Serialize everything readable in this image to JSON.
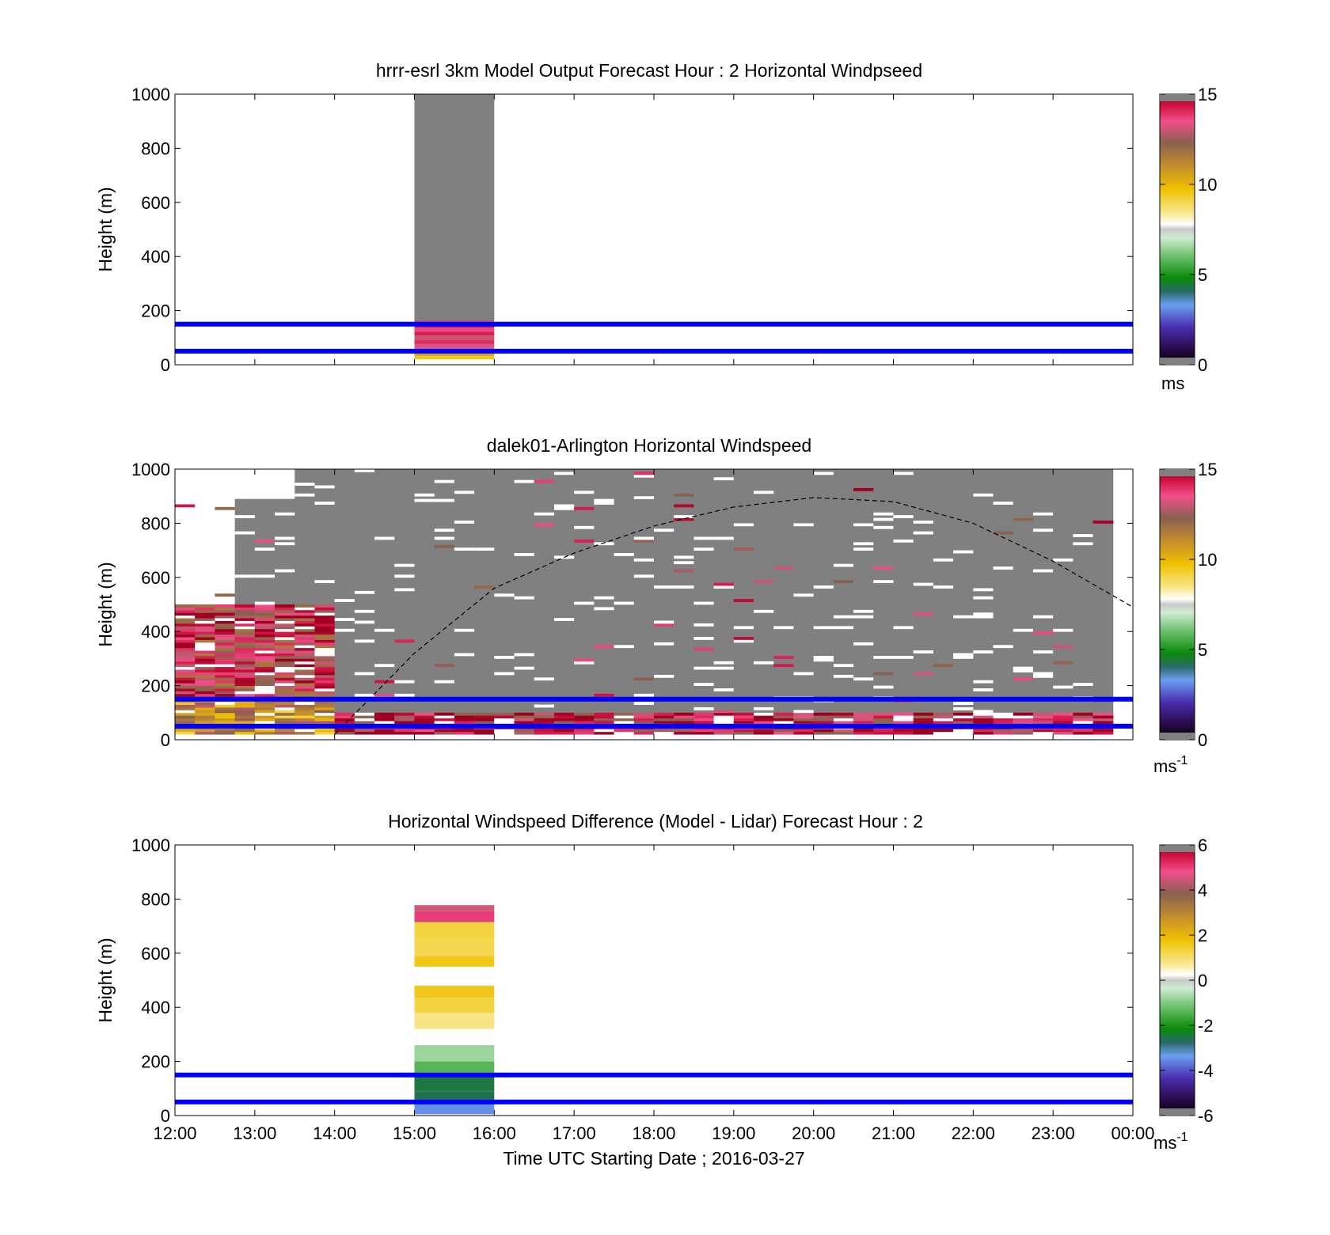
{
  "figure": {
    "xticks": [
      "12:00",
      "13:00",
      "14:00",
      "15:00",
      "16:00",
      "17:00",
      "18:00",
      "19:00",
      "20:00",
      "21:00",
      "22:00",
      "23:00",
      "00:00"
    ],
    "xlabel": "Time UTC  Starting Date ; 2016-03-27",
    "ylabel": "Height (m)",
    "colors": {
      "reference_lines": "#0000ff",
      "missing_data": "#808080",
      "background": "#ffffff"
    }
  },
  "panels": [
    {
      "title": "hrrr-esrl 3km Model Output   Forecast Hour : 2 Horizontal Windpseed",
      "yticks": [
        "0",
        "200",
        "400",
        "600",
        "800",
        "1000"
      ],
      "colorbar": {
        "ticks": [
          "0",
          "5",
          "10",
          "15"
        ],
        "unit_base": "ms",
        "unit_sup": ""
      }
    },
    {
      "title": "dalek01-Arlington  Horizontal Windspeed",
      "yticks": [
        "0",
        "200",
        "400",
        "600",
        "800",
        "1000"
      ],
      "colorbar": {
        "ticks": [
          "0",
          "5",
          "10",
          "15"
        ],
        "unit_base": "ms",
        "unit_sup": "-1"
      }
    },
    {
      "title": "Horizontal Windspeed Difference (Model - Lidar) Forecast Hour : 2",
      "yticks": [
        "0",
        "200",
        "400",
        "600",
        "800",
        "1000"
      ],
      "colorbar": {
        "ticks": [
          "-6",
          "-4",
          "-2",
          "0",
          "2",
          "4",
          "6"
        ],
        "unit_base": "ms",
        "unit_sup": "-1"
      }
    }
  ],
  "chart_data": [
    {
      "type": "heatmap",
      "title": "hrrr-esrl 3km Model Output   Forecast Hour : 2 Horizontal Windpseed",
      "ylabel": "Height (m)",
      "xlim": [
        "12:00",
        "00:00"
      ],
      "ylim": [
        0,
        1000
      ],
      "clim": [
        0,
        15
      ],
      "colorbar_unit": "ms",
      "colormap": [
        "#2a0a4a",
        "#4a2fb0",
        "#6aa0f0",
        "#0a8a0a",
        "#8fd08f",
        "#f0f0f0",
        "#f0c000",
        "#c08a30",
        "#9a6a50",
        "#e8406a",
        "#d01040"
      ],
      "reference_lines_height_m": [
        50,
        150
      ],
      "data_columns": [
        {
          "time_start": "15:00",
          "time_end": "16:00",
          "valid_range_m": [
            20,
            165
          ],
          "values_by_height": [
            {
              "height_m": 25,
              "value": 9.5
            },
            {
              "height_m": 40,
              "value": 10.5
            },
            {
              "height_m": 55,
              "value": 13.5
            },
            {
              "height_m": 70,
              "value": 13.2
            },
            {
              "height_m": 85,
              "value": 14.0
            },
            {
              "height_m": 100,
              "value": 13.0
            },
            {
              "height_m": 115,
              "value": 14.2
            },
            {
              "height_m": 130,
              "value": 13.6
            },
            {
              "height_m": 145,
              "value": 14.4
            },
            {
              "height_m": 160,
              "value": 12.8
            }
          ],
          "missing_above_m": 165
        }
      ]
    },
    {
      "type": "heatmap",
      "title": "dalek01-Arlington  Horizontal Windspeed",
      "ylabel": "Height (m)",
      "xlim": [
        "12:00",
        "00:00"
      ],
      "ylim": [
        0,
        1000
      ],
      "clim": [
        0,
        15
      ],
      "colorbar_unit": "ms-1",
      "reference_lines_height_m": [
        50,
        150
      ],
      "boundary_layer_curve": [
        {
          "time": "14:00",
          "height_m": 20
        },
        {
          "time": "15:00",
          "height_m": 320
        },
        {
          "time": "16:00",
          "height_m": 560
        },
        {
          "time": "17:00",
          "height_m": 690
        },
        {
          "time": "18:00",
          "height_m": 790
        },
        {
          "time": "19:00",
          "height_m": 860
        },
        {
          "time": "20:00",
          "height_m": 895
        },
        {
          "time": "21:00",
          "height_m": 880
        },
        {
          "time": "22:00",
          "height_m": 800
        },
        {
          "time": "23:00",
          "height_m": 660
        },
        {
          "time": "00:00",
          "height_m": 490
        }
      ],
      "data_summary": [
        {
          "time_start": "12:00",
          "time_end": "14:00",
          "height_range_m": [
            0,
            150
          ],
          "typical_value": 11
        },
        {
          "time_start": "12:00",
          "time_end": "14:00",
          "height_range_m": [
            150,
            500
          ],
          "typical_value": 13.5
        },
        {
          "time_start": "14:00",
          "time_end": "23:59",
          "height_range_m": [
            0,
            100
          ],
          "typical_value": 14
        },
        {
          "time_start": "14:00",
          "time_end": "23:59",
          "height_range_m": [
            100,
            1000
          ],
          "typical_value": "missing"
        }
      ]
    },
    {
      "type": "heatmap",
      "title": "Horizontal Windspeed Difference (Model - Lidar) Forecast Hour : 2",
      "xlabel": "Time UTC  Starting Date ; 2016-03-27",
      "ylabel": "Height (m)",
      "xlim": [
        "12:00",
        "00:00"
      ],
      "ylim": [
        0,
        1000
      ],
      "clim": [
        -6,
        6
      ],
      "colorbar_unit": "ms-1",
      "reference_lines_height_m": [
        50,
        150
      ],
      "data_columns": [
        {
          "time_start": "15:00",
          "time_end": "16:00",
          "values_by_height": [
            {
              "height_m": 20,
              "value": -3.5
            },
            {
              "height_m": 60,
              "value": -2.6
            },
            {
              "height_m": 120,
              "value": -2.5
            },
            {
              "height_m": 170,
              "value": -1.4
            },
            {
              "height_m": 230,
              "value": -0.8
            },
            {
              "height_m": 290,
              "value": 0.2
            },
            {
              "height_m": 350,
              "value": 0.8
            },
            {
              "height_m": 410,
              "value": 1.3
            },
            {
              "height_m": 460,
              "value": 1.6
            },
            {
              "height_m": 560,
              "value": 1.6
            },
            {
              "height_m": 620,
              "value": 1.2
            },
            {
              "height_m": 690,
              "value": 1.3
            },
            {
              "height_m": 740,
              "value": 5.0
            },
            {
              "height_m": 770,
              "value": 4.5
            },
            {
              "height_m": 785,
              "value": 0.1
            }
          ],
          "gap_m": [
            480,
            550
          ]
        }
      ]
    }
  ]
}
